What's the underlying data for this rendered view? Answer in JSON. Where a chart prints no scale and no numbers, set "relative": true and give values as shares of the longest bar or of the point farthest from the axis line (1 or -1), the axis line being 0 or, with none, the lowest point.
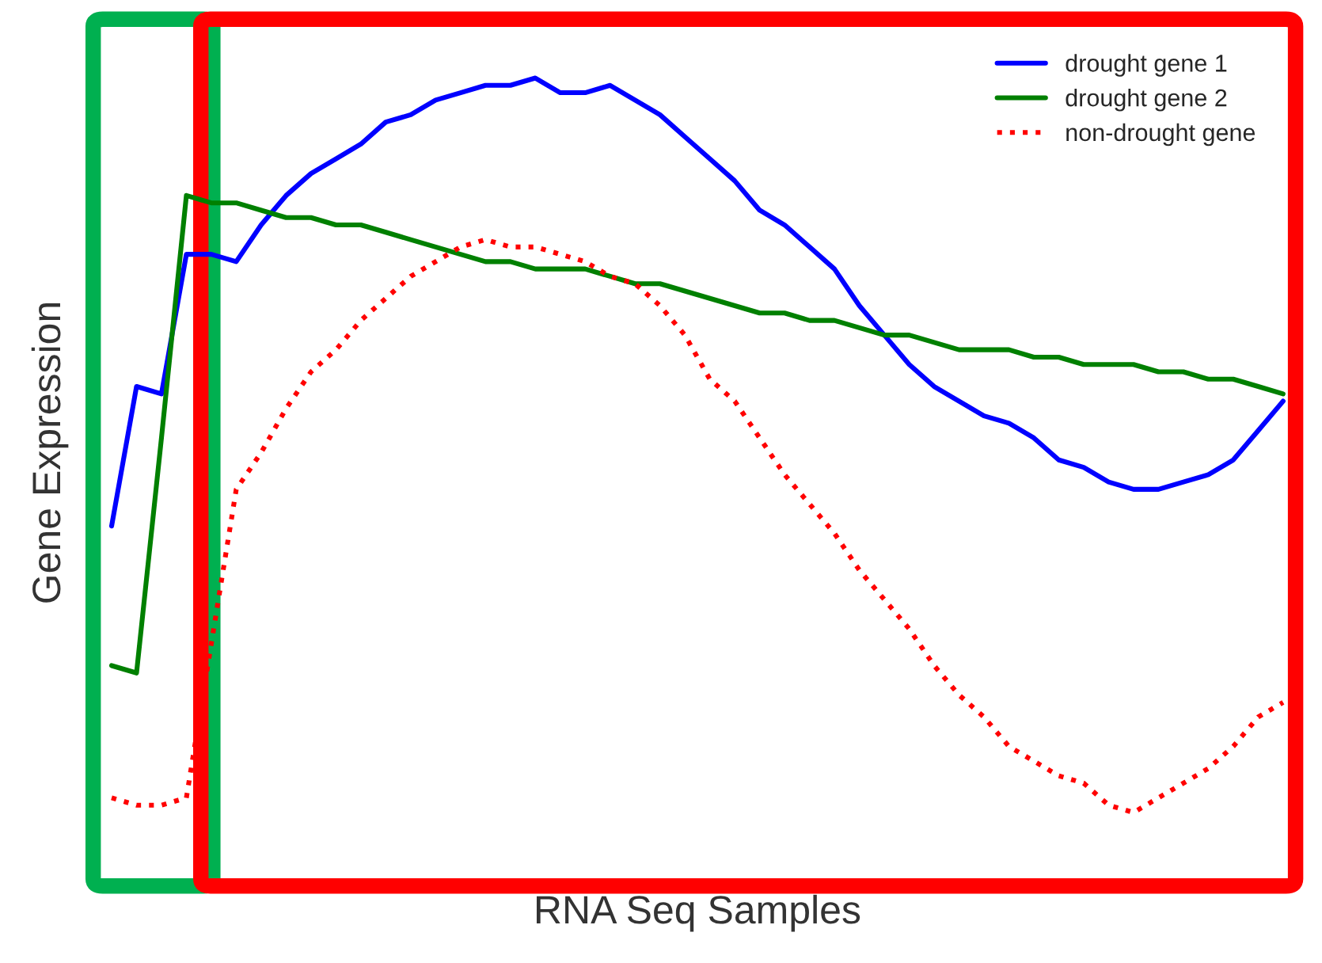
{
  "chart_data": {
    "type": "line",
    "relative": true,
    "xlabel": "RNA Seq Samples",
    "ylabel": "Gene Expression",
    "legend": "top right",
    "tick_labels": false,
    "categories": [
      null,
      null,
      null,
      null,
      null,
      null,
      null,
      null,
      null,
      null,
      null,
      null,
      null,
      null,
      null,
      null,
      null,
      null,
      null,
      null,
      null,
      null,
      null,
      null,
      null,
      null,
      null,
      null,
      null,
      null,
      null,
      null,
      null,
      null,
      null,
      null,
      null,
      null,
      null,
      null,
      null,
      null,
      null,
      null,
      null,
      null,
      null,
      null
    ],
    "series": [
      {
        "name": "drought gene 1",
        "color": "#0000ff",
        "line_style": "solid",
        "values": [
          0.39,
          0.58,
          0.57,
          0.76,
          0.76,
          0.75,
          0.8,
          0.84,
          0.87,
          0.89,
          0.91,
          0.94,
          0.95,
          0.97,
          0.98,
          0.99,
          0.99,
          1.0,
          0.98,
          0.98,
          0.99,
          0.97,
          0.95,
          0.92,
          0.89,
          0.86,
          0.82,
          0.8,
          0.77,
          0.74,
          0.69,
          0.65,
          0.61,
          0.58,
          0.56,
          0.54,
          0.53,
          0.51,
          0.48,
          0.47,
          0.45,
          0.44,
          0.44,
          0.45,
          0.46,
          0.48,
          0.52,
          0.56
        ]
      },
      {
        "name": "drought gene 2",
        "color": "#008000",
        "line_style": "solid",
        "values": [
          0.2,
          0.19,
          0.51,
          0.84,
          0.83,
          0.83,
          0.82,
          0.81,
          0.81,
          0.8,
          0.8,
          0.79,
          0.78,
          0.77,
          0.76,
          0.75,
          0.75,
          0.74,
          0.74,
          0.74,
          0.73,
          0.72,
          0.72,
          0.71,
          0.7,
          0.69,
          0.68,
          0.68,
          0.67,
          0.67,
          0.66,
          0.65,
          0.65,
          0.64,
          0.63,
          0.63,
          0.63,
          0.62,
          0.62,
          0.61,
          0.61,
          0.61,
          0.6,
          0.6,
          0.59,
          0.59,
          0.58,
          0.57
        ]
      },
      {
        "name": "non-drought gene",
        "color": "#ff0000",
        "line_style": "dotted",
        "values": [
          0.02,
          0.01,
          0.01,
          0.02,
          null,
          0.44,
          0.49,
          0.55,
          0.6,
          0.63,
          0.67,
          0.7,
          0.73,
          0.75,
          0.77,
          0.78,
          0.77,
          0.77,
          0.76,
          0.75,
          0.73,
          0.72,
          0.69,
          0.65,
          0.59,
          0.56,
          0.51,
          0.46,
          0.42,
          0.38,
          0.33,
          0.29,
          0.25,
          0.2,
          0.16,
          0.13,
          0.09,
          0.07,
          0.05,
          0.04,
          0.01,
          0,
          0.02,
          0.04,
          0.06,
          0.09,
          0.13,
          0.15
        ]
      }
    ]
  }
}
